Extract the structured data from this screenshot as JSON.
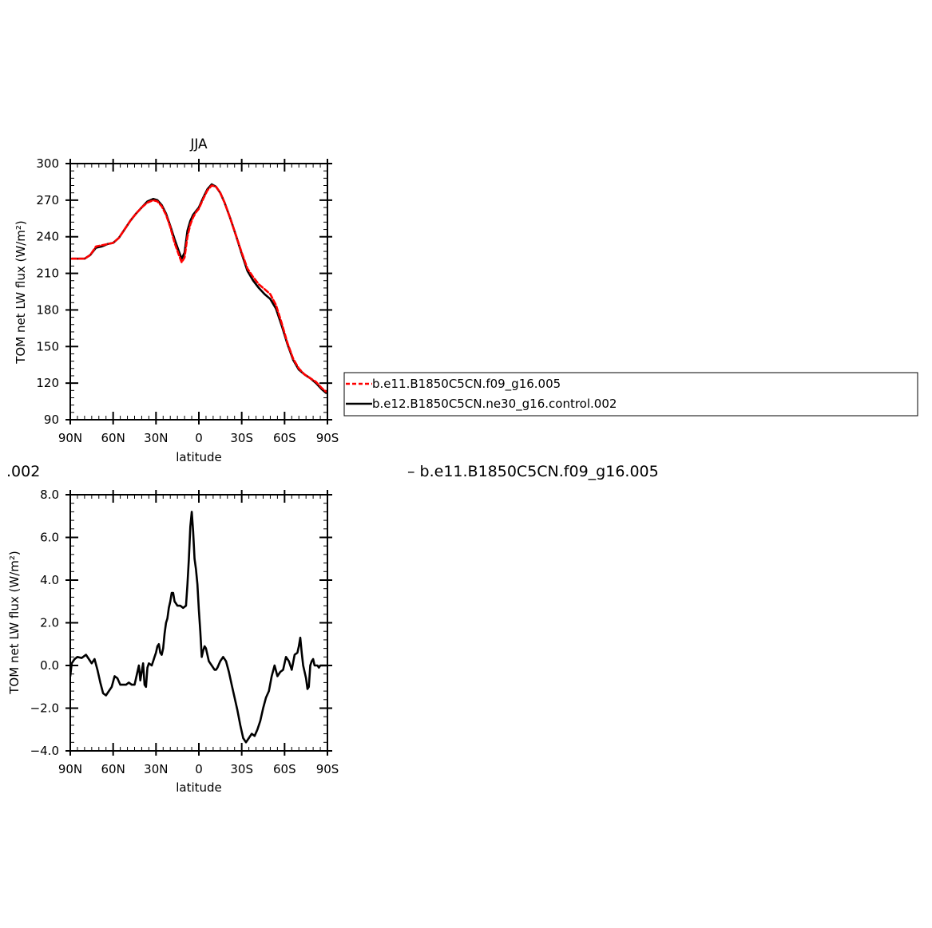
{
  "fragments": {
    "left": ".002",
    "right": "– b.e11.B1850C5CN.f09_g16.005"
  },
  "legend": {
    "entries": [
      {
        "label": "b.e11.B1850C5CN.f09_g16.005",
        "color": "#ff0000",
        "dash": true
      },
      {
        "label": "b.e12.B1850C5CN.ne30_g16.control.002",
        "color": "#000000",
        "dash": false
      }
    ]
  },
  "chart_data": [
    {
      "type": "line",
      "title": "JJA",
      "xlabel": "latitude",
      "ylabel": "TOM net LW flux (W/m²)",
      "xlim": [
        90,
        -90
      ],
      "ylim": [
        90,
        300
      ],
      "x_ticks": [
        90,
        60,
        30,
        0,
        -30,
        -60,
        -90
      ],
      "x_tick_labels": [
        "90N",
        "60N",
        "30N",
        "0",
        "30S",
        "60S",
        "90S"
      ],
      "y_ticks": [
        90,
        120,
        150,
        180,
        210,
        240,
        270,
        300
      ],
      "y_tick_labels": [
        "90",
        "120",
        "150",
        "180",
        "210",
        "240",
        "270",
        "300"
      ],
      "series": [
        {
          "name": "b.e12.B1850C5CN.ne30_g16.control.002",
          "color": "#000000",
          "dash": false,
          "x": [
            89,
            85,
            80,
            76,
            72,
            68,
            64,
            60,
            56,
            52,
            48,
            44,
            40,
            36,
            32,
            29,
            26,
            23,
            20,
            17,
            14,
            12,
            10,
            8,
            6,
            4,
            2,
            0,
            -3,
            -6,
            -9,
            -12,
            -15,
            -18,
            -22,
            -26,
            -30,
            -34,
            -38,
            -42,
            -46,
            -50,
            -54,
            -58,
            -62,
            -66,
            -70,
            -74,
            -78,
            -82,
            -86,
            -89
          ],
          "y": [
            222,
            222,
            222,
            225,
            231,
            232,
            234,
            235,
            239,
            246,
            253,
            259,
            264,
            269,
            271,
            270,
            266,
            259,
            249,
            238,
            228,
            222,
            227,
            245,
            253,
            258,
            261,
            264,
            272,
            279,
            283,
            281,
            276,
            268,
            255,
            241,
            226,
            212,
            204,
            198,
            193,
            189,
            181,
            167,
            152,
            139,
            131,
            127,
            124,
            120,
            115,
            112
          ]
        },
        {
          "name": "b.e11.B1850C5CN.f09_g16.005",
          "color": "#ff0000",
          "dash": true,
          "x": [
            89,
            85,
            80,
            76,
            72,
            68,
            64,
            60,
            56,
            52,
            48,
            44,
            40,
            36,
            32,
            29,
            26,
            23,
            20,
            17,
            14,
            12,
            10,
            8,
            6,
            4,
            2,
            0,
            -3,
            -6,
            -9,
            -12,
            -15,
            -18,
            -22,
            -26,
            -30,
            -34,
            -38,
            -42,
            -46,
            -50,
            -54,
            -58,
            -62,
            -66,
            -70,
            -74,
            -78,
            -82,
            -86,
            -89
          ],
          "y": [
            222,
            222,
            222,
            225,
            232,
            233,
            234,
            235,
            239,
            246,
            253,
            259,
            264,
            268,
            270,
            269,
            265,
            258,
            248,
            235,
            225,
            219,
            223,
            240,
            250,
            256,
            260,
            263,
            271,
            278,
            282,
            281,
            276,
            268,
            255,
            241,
            227,
            214,
            207,
            201,
            197,
            193,
            184,
            169,
            153,
            140,
            132,
            127,
            124,
            121,
            116,
            113
          ]
        }
      ]
    },
    {
      "type": "line",
      "title": "",
      "xlabel": "latitude",
      "ylabel": "TOM net LW flux (W/m²)",
      "xlim": [
        90,
        -90
      ],
      "ylim": [
        -4.0,
        8.0
      ],
      "x_ticks": [
        90,
        60,
        30,
        0,
        -30,
        -60,
        -90
      ],
      "x_tick_labels": [
        "90N",
        "60N",
        "30N",
        "0",
        "30S",
        "60S",
        "90S"
      ],
      "y_ticks": [
        -4.0,
        -2.0,
        0.0,
        2.0,
        4.0,
        6.0,
        8.0
      ],
      "y_tick_labels": [
        "−4.0",
        "−2.0",
        "0.0",
        "2.0",
        "4.0",
        "6.0",
        "8.0"
      ],
      "series": [
        {
          "name": "",
          "color": "#000000",
          "dash": false,
          "x": [
            90,
            89,
            87,
            85,
            82,
            79,
            77,
            75,
            73,
            71,
            69,
            67,
            65,
            63,
            61,
            59,
            57,
            55,
            53,
            51,
            49,
            47,
            45,
            43,
            42,
            41,
            40,
            39,
            38,
            37,
            36,
            35,
            33,
            32,
            31,
            30,
            29,
            28,
            27,
            26,
            25,
            24,
            23,
            22,
            21,
            20,
            19,
            18,
            17,
            16,
            15,
            13,
            11,
            9,
            8,
            7,
            6,
            5,
            4,
            3,
            2,
            1,
            0,
            -1,
            -2,
            -3,
            -4,
            -5,
            -6,
            -7,
            -8,
            -9,
            -10,
            -11,
            -12,
            -13,
            -15,
            -17,
            -19,
            -21,
            -23,
            -25,
            -27,
            -29,
            -31,
            -33,
            -35,
            -37,
            -39,
            -41,
            -43,
            -45,
            -47,
            -49,
            -51,
            -53,
            -55,
            -57,
            -59,
            -61,
            -63,
            -65,
            -67,
            -69,
            -70,
            -71,
            -72,
            -73,
            -74,
            -75,
            -76,
            -77,
            -78,
            -79,
            -80,
            -81,
            -82,
            -83,
            -84,
            -85,
            -86,
            -87,
            -88,
            -89,
            -90
          ],
          "y": [
            -0.5,
            0.1,
            0.3,
            0.4,
            0.35,
            0.5,
            0.3,
            0.1,
            0.3,
            -0.2,
            -0.8,
            -1.3,
            -1.4,
            -1.2,
            -1.0,
            -0.5,
            -0.6,
            -0.9,
            -0.9,
            -0.9,
            -0.8,
            -0.9,
            -0.9,
            -0.3,
            0.0,
            -0.7,
            -0.3,
            0.1,
            -0.9,
            -1.0,
            -0.1,
            0.1,
            0.0,
            0.2,
            0.4,
            0.6,
            0.9,
            1.0,
            0.6,
            0.5,
            0.8,
            1.5,
            2.0,
            2.2,
            2.7,
            3.0,
            3.4,
            3.4,
            3.0,
            2.9,
            2.8,
            2.8,
            2.7,
            2.8,
            3.8,
            5.0,
            6.5,
            7.2,
            6.3,
            5.0,
            4.5,
            3.8,
            2.6,
            1.6,
            0.4,
            0.7,
            0.9,
            0.8,
            0.5,
            0.2,
            0.1,
            0.0,
            -0.1,
            -0.2,
            -0.2,
            -0.1,
            0.2,
            0.4,
            0.2,
            -0.3,
            -0.9,
            -1.5,
            -2.1,
            -2.8,
            -3.4,
            -3.6,
            -3.4,
            -3.2,
            -3.3,
            -3.0,
            -2.6,
            -2.0,
            -1.5,
            -1.2,
            -0.5,
            0.0,
            -0.5,
            -0.3,
            -0.2,
            0.4,
            0.2,
            -0.2,
            0.5,
            0.6,
            0.9,
            1.3,
            0.6,
            0.0,
            -0.3,
            -0.6,
            -1.1,
            -1.0,
            0.0,
            0.2,
            0.3,
            0.0,
            0.0,
            0.0,
            -0.1,
            0.0,
            0.0,
            0.0,
            0.0,
            0.0,
            0.0
          ]
        }
      ]
    }
  ]
}
